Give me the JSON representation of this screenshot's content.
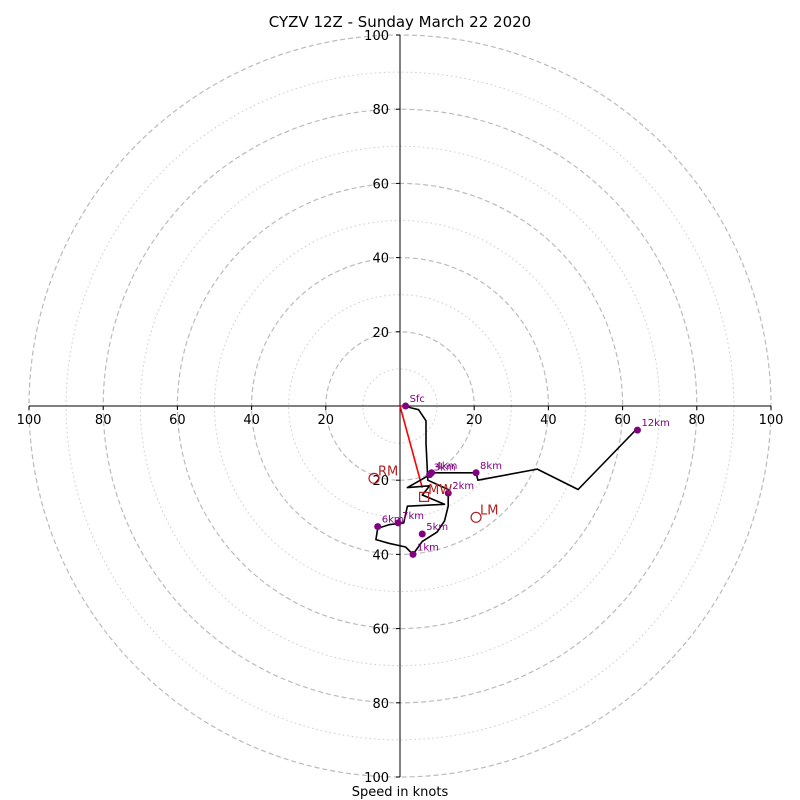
{
  "chart_data": {
    "type": "hodograph",
    "title": "CYZV 12Z - Sunday March 22 2020",
    "xlabel": "Speed in knots",
    "range": [
      -100,
      100
    ],
    "grid": true,
    "rings_major": [
      20,
      40,
      60,
      80,
      100
    ],
    "rings_minor": [
      10,
      30,
      50,
      70,
      90
    ],
    "tick_labels_x": [
      "100",
      "80",
      "60",
      "40",
      "20",
      "20",
      "40",
      "60",
      "80",
      "100"
    ],
    "tick_labels_y": [
      "100",
      "80",
      "60",
      "40",
      "20",
      "20",
      "40",
      "60",
      "80",
      "100"
    ],
    "tick_values": [
      -100,
      -80,
      -60,
      -40,
      -20,
      20,
      40,
      60,
      80,
      100
    ],
    "trace": [
      [
        1.5,
        0
      ],
      [
        3,
        -0.5
      ],
      [
        5,
        -1
      ],
      [
        7,
        -4
      ],
      [
        7,
        -10
      ],
      [
        7.5,
        -20
      ],
      [
        13,
        -22.5
      ],
      [
        13,
        -27
      ],
      [
        12,
        -31
      ],
      [
        10,
        -34
      ],
      [
        6,
        -36.5
      ],
      [
        3.5,
        -40
      ],
      [
        1.5,
        -38
      ],
      [
        -3,
        -37
      ],
      [
        -6.5,
        -36
      ],
      [
        -6,
        -33
      ],
      [
        -3,
        -32
      ],
      [
        1,
        -31.5
      ],
      [
        2,
        -27
      ],
      [
        12,
        -26.5
      ],
      [
        6,
        -24
      ],
      [
        8,
        -21.5
      ],
      [
        2,
        -22
      ],
      [
        9,
        -18
      ],
      [
        20.5,
        -18
      ],
      [
        21,
        -20
      ],
      [
        37,
        -17
      ],
      [
        48,
        -22.5
      ],
      [
        64,
        -6
      ],
      [
        64.5,
        -6.5
      ]
    ],
    "height_markers": [
      {
        "label": "Sfc",
        "u": 1.5,
        "v": 0
      },
      {
        "label": "1km",
        "u": 3.5,
        "v": -40
      },
      {
        "label": "2km",
        "u": 13,
        "v": -23.5
      },
      {
        "label": "3km",
        "u": 8,
        "v": -18.5
      },
      {
        "label": "4km",
        "u": 8.5,
        "v": -18
      },
      {
        "label": "5km",
        "u": 6,
        "v": -34.5
      },
      {
        "label": "6km",
        "u": -6,
        "v": -32.5
      },
      {
        "label": "7km",
        "u": -0.5,
        "v": -31.5
      },
      {
        "label": "8km",
        "u": 20.5,
        "v": -18
      },
      {
        "label": "12km",
        "u": 64,
        "v": -6.5
      }
    ],
    "storm_motion": [
      {
        "label": "RM",
        "u": -7,
        "v": -19.5
      },
      {
        "label": "LM",
        "u": 20.5,
        "v": -30
      },
      {
        "label": "MW",
        "u": 6.5,
        "v": -24.5
      }
    ],
    "shear_vector": {
      "from": [
        0,
        0
      ],
      "to": [
        6,
        -22
      ]
    },
    "colors": {
      "trace": "#000000",
      "marker": "#800080",
      "storm_motion": "#b22222",
      "shear": "#ff0000",
      "ring_major": "#bbbbbb",
      "ring_minor": "#cccccc"
    }
  }
}
